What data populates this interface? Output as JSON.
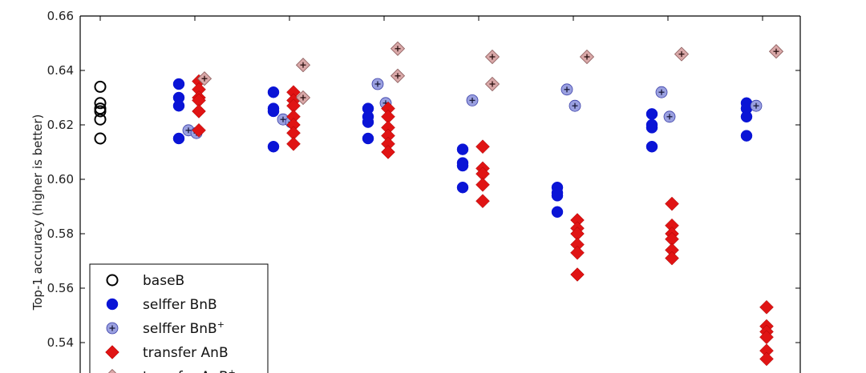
{
  "chart_data": {
    "type": "scatter",
    "ylabel": "Top-1 accuracy (higher is better)",
    "xlabel": "",
    "ylim": [
      0.52,
      0.66
    ],
    "xlim": [
      -0.5,
      7.5
    ],
    "yticks": [
      "0.54",
      "0.56",
      "0.58",
      "0.60",
      "0.62",
      "0.64",
      "0.66"
    ],
    "x": [
      0,
      1,
      2,
      3,
      4,
      5,
      6,
      7
    ],
    "legend_position": "bottom-left",
    "series": [
      {
        "name": "baseB",
        "marker": "open-circle",
        "color": "#000000",
        "points": [
          [
            0,
            0.634
          ],
          [
            0,
            0.628
          ],
          [
            0,
            0.626
          ],
          [
            0,
            0.625
          ],
          [
            0,
            0.622
          ],
          [
            0,
            0.615
          ]
        ]
      },
      {
        "name": "selffer BnB",
        "marker": "circle",
        "color": "#0a14d6",
        "points": [
          [
            1,
            0.635
          ],
          [
            1,
            0.63
          ],
          [
            1,
            0.627
          ],
          [
            1,
            0.615
          ],
          [
            2,
            0.632
          ],
          [
            2,
            0.626
          ],
          [
            2,
            0.625
          ],
          [
            2,
            0.612
          ],
          [
            3,
            0.626
          ],
          [
            3,
            0.623
          ],
          [
            3,
            0.621
          ],
          [
            3,
            0.615
          ],
          [
            4,
            0.611
          ],
          [
            4,
            0.606
          ],
          [
            4,
            0.605
          ],
          [
            4,
            0.597
          ],
          [
            5,
            0.597
          ],
          [
            5,
            0.595
          ],
          [
            5,
            0.594
          ],
          [
            5,
            0.588
          ],
          [
            6,
            0.624
          ],
          [
            6,
            0.62
          ],
          [
            6,
            0.619
          ],
          [
            6,
            0.612
          ],
          [
            7,
            0.628
          ],
          [
            7,
            0.626
          ],
          [
            7,
            0.623
          ],
          [
            7,
            0.616
          ]
        ]
      },
      {
        "name": "selffer BnB",
        "name_superscript": "+",
        "marker": "circle-plus",
        "color": "#9aa0e0",
        "points": [
          [
            1,
            0.618
          ],
          [
            1,
            0.617
          ],
          [
            2,
            0.622
          ],
          [
            2,
            0.621
          ],
          [
            3,
            0.635
          ],
          [
            3,
            0.628
          ],
          [
            4,
            0.629
          ],
          [
            5,
            0.633
          ],
          [
            5,
            0.627
          ],
          [
            6,
            0.632
          ],
          [
            6,
            0.623
          ],
          [
            7,
            0.627
          ]
        ]
      },
      {
        "name": "transfer AnB",
        "marker": "diamond",
        "color": "#e01414",
        "points": [
          [
            1,
            0.636
          ],
          [
            1,
            0.633
          ],
          [
            1,
            0.63
          ],
          [
            1,
            0.629
          ],
          [
            1,
            0.625
          ],
          [
            1,
            0.618
          ],
          [
            2,
            0.632
          ],
          [
            2,
            0.629
          ],
          [
            2,
            0.627
          ],
          [
            2,
            0.623
          ],
          [
            2,
            0.62
          ],
          [
            2,
            0.617
          ],
          [
            2,
            0.613
          ],
          [
            3,
            0.626
          ],
          [
            3,
            0.623
          ],
          [
            3,
            0.619
          ],
          [
            3,
            0.616
          ],
          [
            3,
            0.613
          ],
          [
            3,
            0.61
          ],
          [
            4,
            0.612
          ],
          [
            4,
            0.604
          ],
          [
            4,
            0.602
          ],
          [
            4,
            0.598
          ],
          [
            4,
            0.592
          ],
          [
            5,
            0.585
          ],
          [
            5,
            0.582
          ],
          [
            5,
            0.58
          ],
          [
            5,
            0.576
          ],
          [
            5,
            0.573
          ],
          [
            5,
            0.565
          ],
          [
            6,
            0.591
          ],
          [
            6,
            0.583
          ],
          [
            6,
            0.58
          ],
          [
            6,
            0.578
          ],
          [
            6,
            0.574
          ],
          [
            6,
            0.571
          ],
          [
            7,
            0.553
          ],
          [
            7,
            0.546
          ],
          [
            7,
            0.544
          ],
          [
            7,
            0.542
          ],
          [
            7,
            0.537
          ],
          [
            7,
            0.534
          ]
        ]
      },
      {
        "name": "transfer AnB",
        "name_superscript": "+",
        "marker": "diamond-plus",
        "color": "#d9a8a8",
        "points": [
          [
            1,
            0.637
          ],
          [
            2,
            0.642
          ],
          [
            2,
            0.63
          ],
          [
            3,
            0.648
          ],
          [
            3,
            0.638
          ],
          [
            4,
            0.645
          ],
          [
            4,
            0.635
          ],
          [
            5,
            0.645
          ],
          [
            6,
            0.646
          ],
          [
            7,
            0.647
          ]
        ]
      }
    ]
  }
}
